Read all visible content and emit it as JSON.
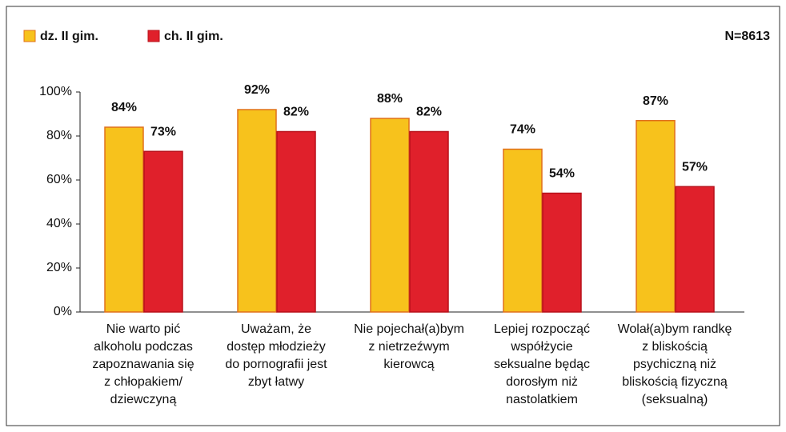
{
  "chart_data": {
    "type": "bar",
    "annotation": "N=8613",
    "categories": [
      "Nie warto pić\nalkoholu podczas\nzapoznawania się\nz chłopakiem/\ndziewczyną",
      "Uważam, że\ndostęp młodzieży\ndo pornografii jest\nzbyt łatwy",
      "Nie pojechał(a)bym\nz nietrzeźwym\nkierowcą",
      "Lepiej rozpocząć\nwspółżycie\nseksualne będąc\ndorosłym niż\nnastolatkiem",
      "Wolał(a)bym randkę\nz bliskością\npsychiczną niż\nbliskością fizyczną\n(seksualną)"
    ],
    "series": [
      {
        "name": "dz. II gim.",
        "color": "#f7c21c",
        "values": [
          84,
          92,
          88,
          74,
          87
        ],
        "value_labels": [
          "84%",
          "92%",
          "88%",
          "74%",
          "87%"
        ]
      },
      {
        "name": "ch. II gim.",
        "color": "#e0202b",
        "values": [
          73,
          82,
          82,
          54,
          57
        ],
        "value_labels": [
          "73%",
          "82%",
          "82%",
          "54%",
          "57%"
        ]
      }
    ],
    "ylim": [
      0,
      100
    ],
    "yticks": [
      {
        "value": 0,
        "label": "0%"
      },
      {
        "value": 20,
        "label": "20%"
      },
      {
        "value": 40,
        "label": "40%"
      },
      {
        "value": 60,
        "label": "60%"
      },
      {
        "value": 80,
        "label": "80%"
      },
      {
        "value": 100,
        "label": "100%"
      }
    ],
    "legend": "top-left"
  }
}
